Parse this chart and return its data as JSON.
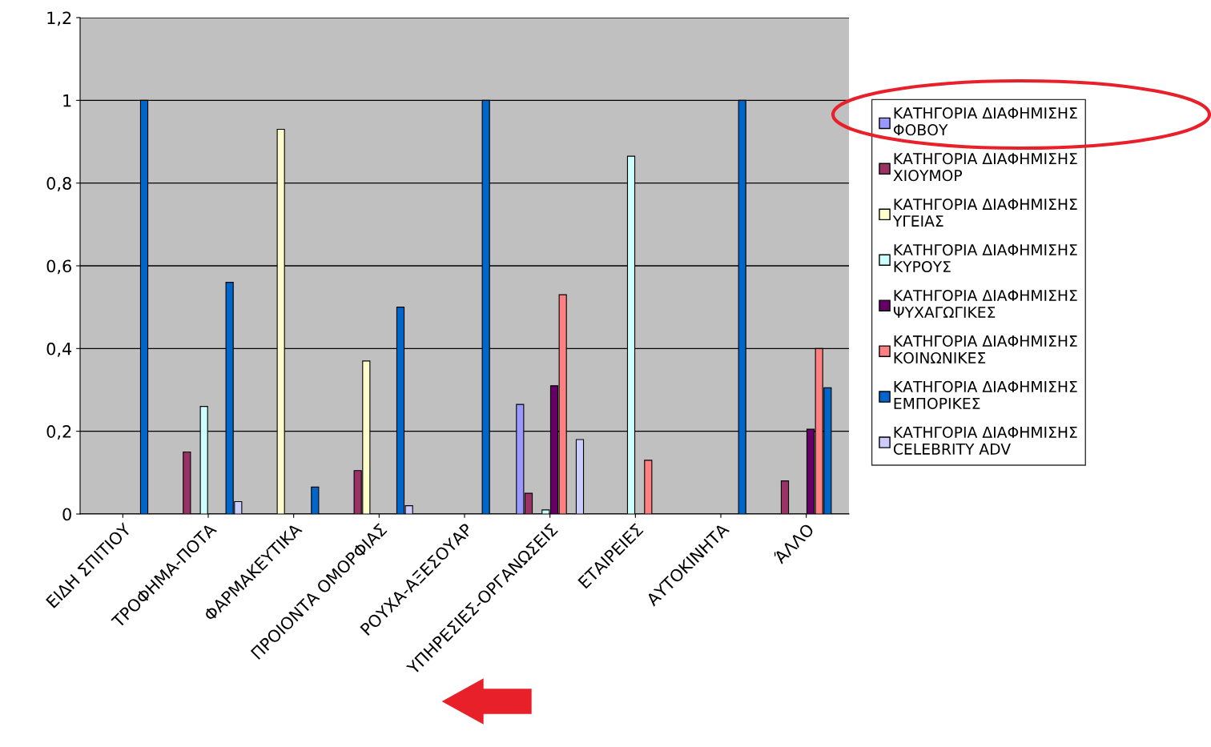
{
  "chart_data": {
    "type": "bar",
    "categories": [
      "ΕΙΔΗ ΣΠΙΤΙΟΥ",
      "ΤΡΟΦΗΜΑ-ΠΟΤΑ",
      "ΦΑΡΜΑΚΕΥΤΙΚΑ",
      "ΠΡΟΙΟΝΤΑ ΟΜΟΡΦΙΑΣ",
      "ΡΟΥΧΑ-ΑΞΕΣΟΥΑΡ",
      "ΥΠΗΡΕΣΙΕΣ-ΟΡΓΑΝΩΣΕΙΣ",
      "ΕΤΑΙΡΕΙΕΣ",
      "ΑΥΤΟΚΙΝΗΤΑ",
      "ΆΛΛΟ"
    ],
    "series": [
      {
        "name": "ΚΑΤΗΓΟΡΙΑ ΔΙΑΦΗΜΙΣΗΣ\nΦΟΒΟΥ",
        "color": "#9999ff",
        "values": [
          null,
          null,
          null,
          null,
          null,
          0.265,
          null,
          null,
          null
        ]
      },
      {
        "name": "ΚΑΤΗΓΟΡΙΑ ΔΙΑΦΗΜΙΣΗΣ\nΧΙΟΥΜΟΡ",
        "color": "#993366",
        "values": [
          null,
          0.15,
          null,
          0.105,
          null,
          0.05,
          null,
          null,
          0.08
        ]
      },
      {
        "name": "ΚΑΤΗΓΟΡΙΑ ΔΙΑΦΗΜΙΣΗΣ\nΥΓΕΙΑΣ",
        "color": "#ffffcc",
        "values": [
          null,
          null,
          0.93,
          0.37,
          null,
          null,
          null,
          null,
          null
        ]
      },
      {
        "name": "ΚΑΤΗΓΟΡΙΑ ΔΙΑΦΗΜΙΣΗΣ\nΚΥΡΟΥΣ",
        "color": "#ccffff",
        "values": [
          null,
          0.26,
          null,
          null,
          null,
          0.01,
          0.865,
          null,
          null
        ]
      },
      {
        "name": "ΚΑΤΗΓΟΡΙΑ ΔΙΑΦΗΜΙΣΗΣ\nΨΥΧΑΓΩΓΙΚΕΣ",
        "color": "#660066",
        "values": [
          null,
          null,
          null,
          null,
          null,
          0.31,
          null,
          null,
          0.205
        ]
      },
      {
        "name": "ΚΑΤΗΓΟΡΙΑ ΔΙΑΦΗΜΙΣΗΣ\nΚΟΙΝΩΝΙΚΕΣ",
        "color": "#ff8080",
        "values": [
          null,
          null,
          null,
          null,
          null,
          0.53,
          0.13,
          null,
          0.4
        ]
      },
      {
        "name": "ΚΑΤΗΓΟΡΙΑ ΔΙΑΦΗΜΙΣΗΣ\nΕΜΠΟΡΙΚΕΣ",
        "color": "#0066cc",
        "values": [
          1,
          0.56,
          0.065,
          0.5,
          1,
          null,
          null,
          1,
          0.305
        ]
      },
      {
        "name": "ΚΑΤΗΓΟΡΙΑ ΔΙΑΦΗΜΙΣΗΣ\nCELEBRITY ADV",
        "color": "#ccccff",
        "values": [
          null,
          0.03,
          null,
          0.02,
          null,
          0.18,
          null,
          null,
          null
        ]
      }
    ],
    "ylim": [
      0,
      1.2
    ],
    "yticks": [
      0,
      {
        "value": 0.2,
        "label": "0,2"
      },
      {
        "value": 0.4,
        "label": "0,4"
      },
      {
        "value": 0.6,
        "label": "0,6"
      },
      {
        "value": 0.8,
        "label": "0,8"
      },
      1,
      {
        "value": 1.2,
        "label": "1,2"
      }
    ],
    "grid": "y",
    "legend": "right"
  }
}
